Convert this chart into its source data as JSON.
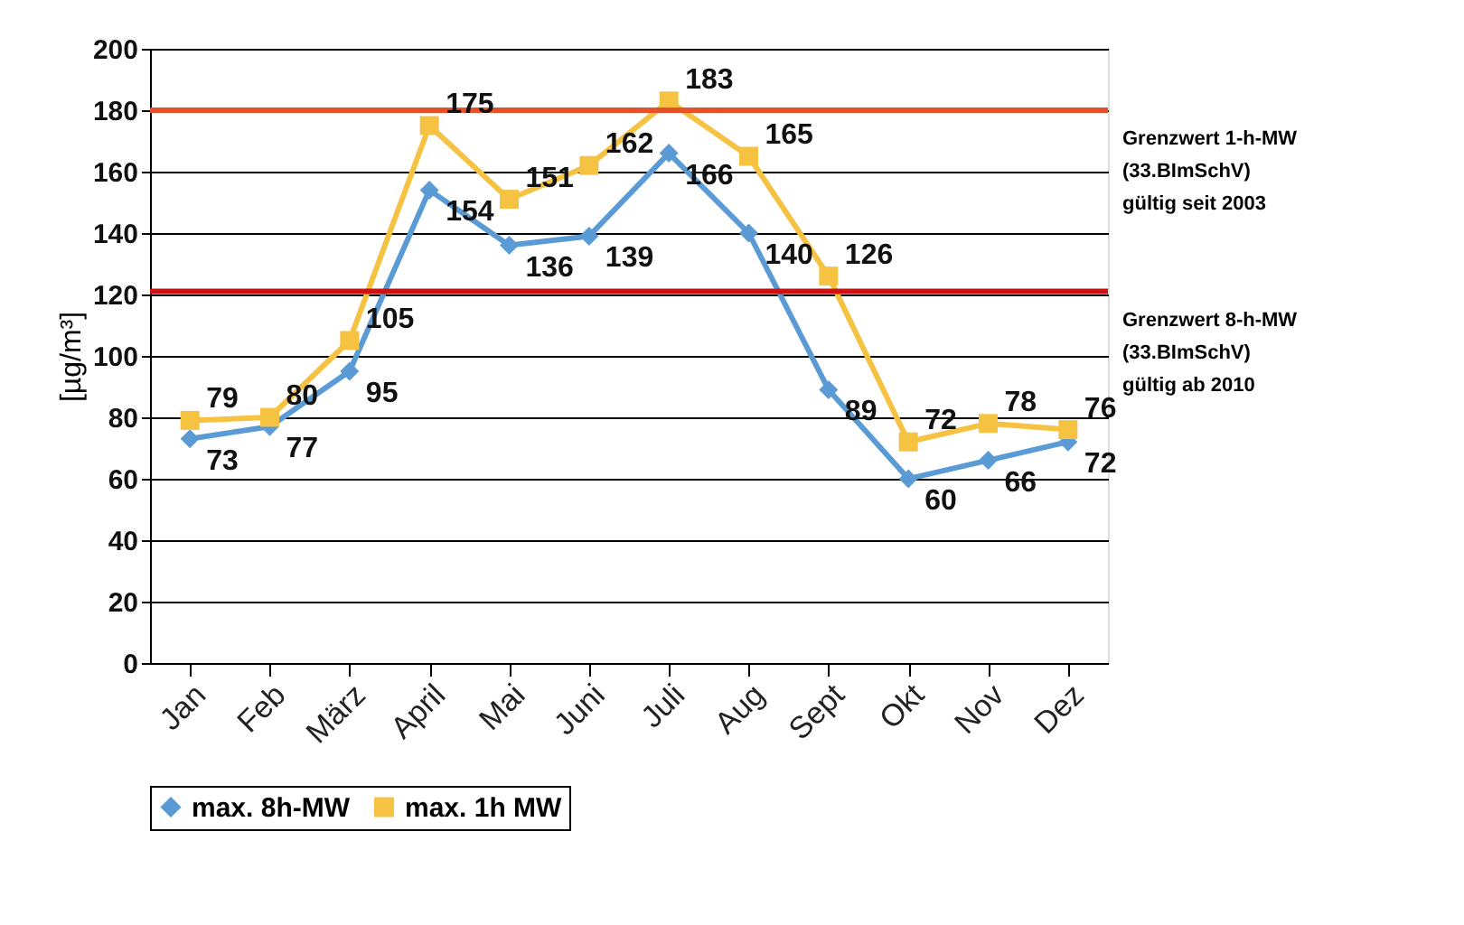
{
  "chart_data": {
    "type": "line",
    "ylabel": "[µg/m³]",
    "categories": [
      "Jan",
      "Feb",
      "März",
      "April",
      "Mai",
      "Juni",
      "Juli",
      "Aug",
      "Sept",
      "Okt",
      "Nov",
      "Dez"
    ],
    "series": [
      {
        "name": "max. 8h-MW",
        "color": "#5b9bd5",
        "marker": "diamond",
        "values": [
          73,
          77,
          95,
          154,
          136,
          139,
          166,
          140,
          89,
          60,
          66,
          72
        ]
      },
      {
        "name": "max. 1h MW",
        "color": "#f5c242",
        "marker": "square",
        "values": [
          79,
          80,
          105,
          175,
          151,
          162,
          183,
          165,
          126,
          72,
          78,
          76
        ]
      }
    ],
    "ylim": [
      0,
      200
    ],
    "yticks": [
      0,
      20,
      40,
      60,
      80,
      100,
      120,
      140,
      160,
      180,
      200
    ],
    "ref_lines": [
      {
        "axis": "y",
        "value": 180,
        "label": "Grenzwert 1-h-MW\n(33.BImSchV)\n gültig seit 2003",
        "color": "#e8502a"
      },
      {
        "axis": "y",
        "value": 121,
        "label": "Grenzwert 8-h-MW\n(33.BImSchV)\n gültig ab 2010",
        "color": "#cc1111"
      }
    ],
    "grid": "y",
    "legend": "bottom",
    "data_labels": true
  }
}
